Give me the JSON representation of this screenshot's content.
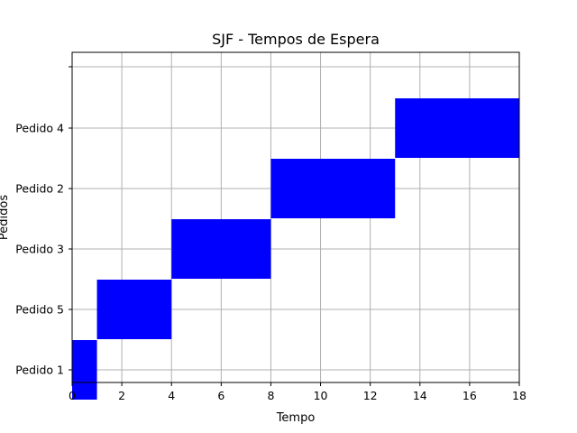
{
  "chart_data": {
    "type": "gantt-bar",
    "title": "SJF - Tempos de Espera",
    "xlabel": "Tempo",
    "ylabel": "Pedidos",
    "xlim": [
      0,
      18
    ],
    "x_ticks": [
      0,
      2,
      4,
      6,
      8,
      10,
      12,
      14,
      16,
      18
    ],
    "y_categories": [
      "Pedido 1",
      "Pedido 5",
      "Pedido 3",
      "Pedido 2",
      "Pedido 4",
      ""
    ],
    "bars": [
      {
        "row": 0,
        "start": 0,
        "end": 1
      },
      {
        "row": 1,
        "start": 1,
        "end": 4
      },
      {
        "row": 2,
        "start": 4,
        "end": 8
      },
      {
        "row": 3,
        "start": 8,
        "end": 13
      },
      {
        "row": 4,
        "start": 13,
        "end": 18
      }
    ],
    "bar_color": "#0000ff",
    "grid": true
  }
}
